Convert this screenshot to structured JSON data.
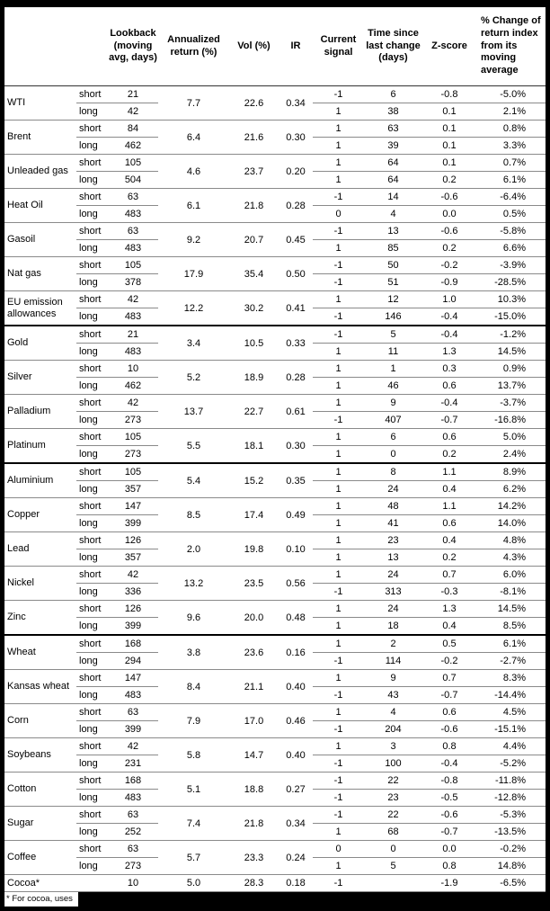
{
  "table": {
    "headers": {
      "commodity": "",
      "term": "",
      "lookback": "Lookback (moving avg, days)",
      "ann": "Annualized return (%)",
      "vol": "Vol (%)",
      "ir": "IR",
      "signal": "Current signal",
      "time": "Time since last change (days)",
      "z": "Z-score",
      "pct": "% Change of return index from its moving average"
    },
    "footnote": "* For cocoa, uses",
    "rows": [
      {
        "name": "WTI",
        "group_end": false,
        "ann": "7.7",
        "vol": "22.6",
        "ir": "0.34",
        "sub": [
          {
            "term": "short",
            "lookback": "21",
            "signal": "-1",
            "time": "6",
            "z": "-0.8",
            "pct": "-5.0%"
          },
          {
            "term": "long",
            "lookback": "42",
            "signal": "1",
            "time": "38",
            "z": "0.1",
            "pct": "2.1%"
          }
        ]
      },
      {
        "name": "Brent",
        "group_end": false,
        "ann": "6.4",
        "vol": "21.6",
        "ir": "0.30",
        "sub": [
          {
            "term": "short",
            "lookback": "84",
            "signal": "1",
            "time": "63",
            "z": "0.1",
            "pct": "0.8%"
          },
          {
            "term": "long",
            "lookback": "462",
            "signal": "1",
            "time": "39",
            "z": "0.1",
            "pct": "3.3%"
          }
        ]
      },
      {
        "name": "Unleaded gas",
        "group_end": false,
        "ann": "4.6",
        "vol": "23.7",
        "ir": "0.20",
        "sub": [
          {
            "term": "short",
            "lookback": "105",
            "signal": "1",
            "time": "64",
            "z": "0.1",
            "pct": "0.7%"
          },
          {
            "term": "long",
            "lookback": "504",
            "signal": "1",
            "time": "64",
            "z": "0.2",
            "pct": "6.1%"
          }
        ]
      },
      {
        "name": "Heat Oil",
        "group_end": false,
        "ann": "6.1",
        "vol": "21.8",
        "ir": "0.28",
        "sub": [
          {
            "term": "short",
            "lookback": "63",
            "signal": "-1",
            "time": "14",
            "z": "-0.6",
            "pct": "-6.4%"
          },
          {
            "term": "long",
            "lookback": "483",
            "signal": "0",
            "time": "4",
            "z": "0.0",
            "pct": "0.5%"
          }
        ]
      },
      {
        "name": "Gasoil",
        "group_end": false,
        "ann": "9.2",
        "vol": "20.7",
        "ir": "0.45",
        "sub": [
          {
            "term": "short",
            "lookback": "63",
            "signal": "-1",
            "time": "13",
            "z": "-0.6",
            "pct": "-5.8%"
          },
          {
            "term": "long",
            "lookback": "483",
            "signal": "1",
            "time": "85",
            "z": "0.2",
            "pct": "6.6%"
          }
        ]
      },
      {
        "name": "Nat gas",
        "group_end": false,
        "ann": "17.9",
        "vol": "35.4",
        "ir": "0.50",
        "sub": [
          {
            "term": "short",
            "lookback": "105",
            "signal": "-1",
            "time": "50",
            "z": "-0.2",
            "pct": "-3.9%"
          },
          {
            "term": "long",
            "lookback": "378",
            "signal": "-1",
            "time": "51",
            "z": "-0.9",
            "pct": "-28.5%"
          }
        ]
      },
      {
        "name": "EU emission allowances",
        "group_end": true,
        "ann": "12.2",
        "vol": "30.2",
        "ir": "0.41",
        "sub": [
          {
            "term": "short",
            "lookback": "42",
            "signal": "1",
            "time": "12",
            "z": "1.0",
            "pct": "10.3%"
          },
          {
            "term": "long",
            "lookback": "483",
            "signal": "-1",
            "time": "146",
            "z": "-0.4",
            "pct": "-15.0%"
          }
        ]
      },
      {
        "name": "Gold",
        "group_end": false,
        "ann": "3.4",
        "vol": "10.5",
        "ir": "0.33",
        "sub": [
          {
            "term": "short",
            "lookback": "21",
            "signal": "-1",
            "time": "5",
            "z": "-0.4",
            "pct": "-1.2%"
          },
          {
            "term": "long",
            "lookback": "483",
            "signal": "1",
            "time": "11",
            "z": "1.3",
            "pct": "14.5%"
          }
        ]
      },
      {
        "name": "Silver",
        "group_end": false,
        "ann": "5.2",
        "vol": "18.9",
        "ir": "0.28",
        "sub": [
          {
            "term": "short",
            "lookback": "10",
            "signal": "1",
            "time": "1",
            "z": "0.3",
            "pct": "0.9%"
          },
          {
            "term": "long",
            "lookback": "462",
            "signal": "1",
            "time": "46",
            "z": "0.6",
            "pct": "13.7%"
          }
        ]
      },
      {
        "name": "Palladium",
        "group_end": false,
        "ann": "13.7",
        "vol": "22.7",
        "ir": "0.61",
        "sub": [
          {
            "term": "short",
            "lookback": "42",
            "signal": "1",
            "time": "9",
            "z": "-0.4",
            "pct": "-3.7%"
          },
          {
            "term": "long",
            "lookback": "273",
            "signal": "-1",
            "time": "407",
            "z": "-0.7",
            "pct": "-16.8%"
          }
        ]
      },
      {
        "name": "Platinum",
        "group_end": true,
        "ann": "5.5",
        "vol": "18.1",
        "ir": "0.30",
        "sub": [
          {
            "term": "short",
            "lookback": "105",
            "signal": "1",
            "time": "6",
            "z": "0.6",
            "pct": "5.0%"
          },
          {
            "term": "long",
            "lookback": "273",
            "signal": "1",
            "time": "0",
            "z": "0.2",
            "pct": "2.4%"
          }
        ]
      },
      {
        "name": "Aluminium",
        "group_end": false,
        "ann": "5.4",
        "vol": "15.2",
        "ir": "0.35",
        "sub": [
          {
            "term": "short",
            "lookback": "105",
            "signal": "1",
            "time": "8",
            "z": "1.1",
            "pct": "8.9%"
          },
          {
            "term": "long",
            "lookback": "357",
            "signal": "1",
            "time": "24",
            "z": "0.4",
            "pct": "6.2%"
          }
        ]
      },
      {
        "name": "Copper",
        "group_end": false,
        "ann": "8.5",
        "vol": "17.4",
        "ir": "0.49",
        "sub": [
          {
            "term": "short",
            "lookback": "147",
            "signal": "1",
            "time": "48",
            "z": "1.1",
            "pct": "14.2%"
          },
          {
            "term": "long",
            "lookback": "399",
            "signal": "1",
            "time": "41",
            "z": "0.6",
            "pct": "14.0%"
          }
        ]
      },
      {
        "name": "Lead",
        "group_end": false,
        "ann": "2.0",
        "vol": "19.8",
        "ir": "0.10",
        "sub": [
          {
            "term": "short",
            "lookback": "126",
            "signal": "1",
            "time": "23",
            "z": "0.4",
            "pct": "4.8%"
          },
          {
            "term": "long",
            "lookback": "357",
            "signal": "1",
            "time": "13",
            "z": "0.2",
            "pct": "4.3%"
          }
        ]
      },
      {
        "name": "Nickel",
        "group_end": false,
        "ann": "13.2",
        "vol": "23.5",
        "ir": "0.56",
        "sub": [
          {
            "term": "short",
            "lookback": "42",
            "signal": "1",
            "time": "24",
            "z": "0.7",
            "pct": "6.0%"
          },
          {
            "term": "long",
            "lookback": "336",
            "signal": "-1",
            "time": "313",
            "z": "-0.3",
            "pct": "-8.1%"
          }
        ]
      },
      {
        "name": "Zinc",
        "group_end": true,
        "ann": "9.6",
        "vol": "20.0",
        "ir": "0.48",
        "sub": [
          {
            "term": "short",
            "lookback": "126",
            "signal": "1",
            "time": "24",
            "z": "1.3",
            "pct": "14.5%"
          },
          {
            "term": "long",
            "lookback": "399",
            "signal": "1",
            "time": "18",
            "z": "0.4",
            "pct": "8.5%"
          }
        ]
      },
      {
        "name": "Wheat",
        "group_end": false,
        "ann": "3.8",
        "vol": "23.6",
        "ir": "0.16",
        "sub": [
          {
            "term": "short",
            "lookback": "168",
            "signal": "1",
            "time": "2",
            "z": "0.5",
            "pct": "6.1%"
          },
          {
            "term": "long",
            "lookback": "294",
            "signal": "-1",
            "time": "114",
            "z": "-0.2",
            "pct": "-2.7%"
          }
        ]
      },
      {
        "name": "Kansas wheat",
        "group_end": false,
        "ann": "8.4",
        "vol": "21.1",
        "ir": "0.40",
        "sub": [
          {
            "term": "short",
            "lookback": "147",
            "signal": "1",
            "time": "9",
            "z": "0.7",
            "pct": "8.3%"
          },
          {
            "term": "long",
            "lookback": "483",
            "signal": "-1",
            "time": "43",
            "z": "-0.7",
            "pct": "-14.4%"
          }
        ]
      },
      {
        "name": "Corn",
        "group_end": false,
        "ann": "7.9",
        "vol": "17.0",
        "ir": "0.46",
        "sub": [
          {
            "term": "short",
            "lookback": "63",
            "signal": "1",
            "time": "4",
            "z": "0.6",
            "pct": "4.5%"
          },
          {
            "term": "long",
            "lookback": "399",
            "signal": "-1",
            "time": "204",
            "z": "-0.6",
            "pct": "-15.1%"
          }
        ]
      },
      {
        "name": "Soybeans",
        "group_end": false,
        "ann": "5.8",
        "vol": "14.7",
        "ir": "0.40",
        "sub": [
          {
            "term": "short",
            "lookback": "42",
            "signal": "1",
            "time": "3",
            "z": "0.8",
            "pct": "4.4%"
          },
          {
            "term": "long",
            "lookback": "231",
            "signal": "-1",
            "time": "100",
            "z": "-0.4",
            "pct": "-5.2%"
          }
        ]
      },
      {
        "name": "Cotton",
        "group_end": false,
        "ann": "5.1",
        "vol": "18.8",
        "ir": "0.27",
        "sub": [
          {
            "term": "short",
            "lookback": "168",
            "signal": "-1",
            "time": "22",
            "z": "-0.8",
            "pct": "-11.8%"
          },
          {
            "term": "long",
            "lookback": "483",
            "signal": "-1",
            "time": "23",
            "z": "-0.5",
            "pct": "-12.8%"
          }
        ]
      },
      {
        "name": "Sugar",
        "group_end": false,
        "ann": "7.4",
        "vol": "21.8",
        "ir": "0.34",
        "sub": [
          {
            "term": "short",
            "lookback": "63",
            "signal": "-1",
            "time": "22",
            "z": "-0.6",
            "pct": "-5.3%"
          },
          {
            "term": "long",
            "lookback": "252",
            "signal": "1",
            "time": "68",
            "z": "-0.7",
            "pct": "-13.5%"
          }
        ]
      },
      {
        "name": "Coffee",
        "group_end": false,
        "ann": "5.7",
        "vol": "23.3",
        "ir": "0.24",
        "sub": [
          {
            "term": "short",
            "lookback": "63",
            "signal": "0",
            "time": "0",
            "z": "0.0",
            "pct": "-0.2%"
          },
          {
            "term": "long",
            "lookback": "273",
            "signal": "1",
            "time": "5",
            "z": "0.8",
            "pct": "14.8%"
          }
        ]
      },
      {
        "name": "Cocoa*",
        "group_end": false,
        "ann": "5.0",
        "vol": "28.3",
        "ir": "0.18",
        "sub": [
          {
            "term": "",
            "lookback": "10",
            "signal": "-1",
            "time": "",
            "z": "-1.9",
            "pct": "-6.5%"
          }
        ]
      }
    ]
  }
}
